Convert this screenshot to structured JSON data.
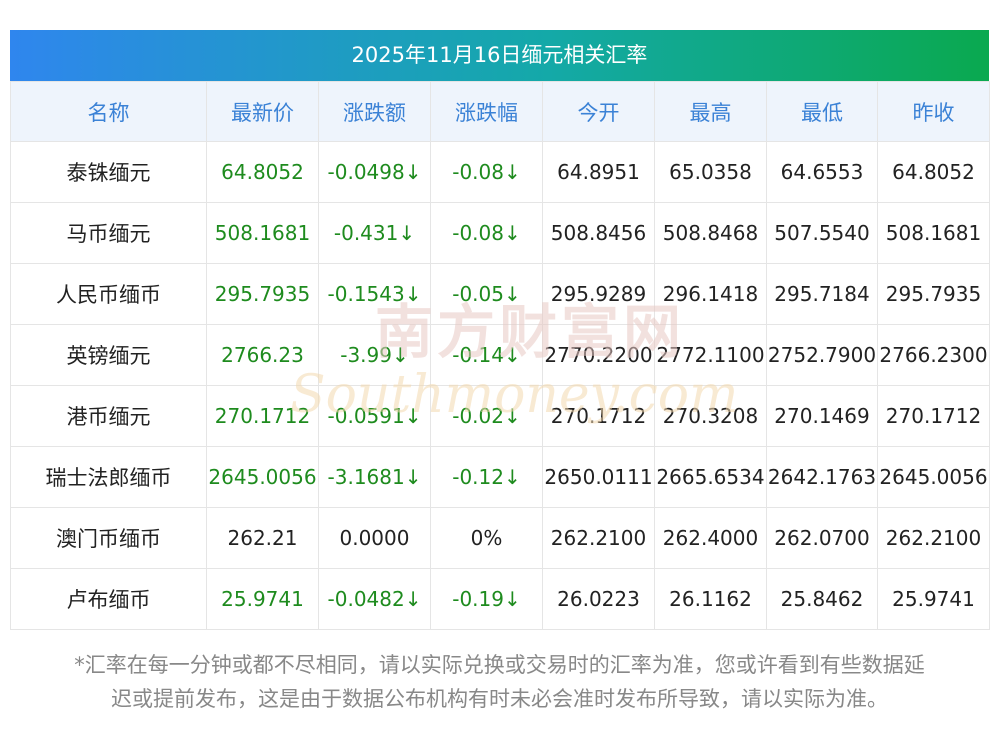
{
  "title": "2025年11月16日缅元相关汇率",
  "headers": [
    "名称",
    "最新价",
    "涨跌额",
    "涨跌幅",
    "今开",
    "最高",
    "最低",
    "昨收"
  ],
  "rows": [
    {
      "name": "泰铢缅元",
      "latest": "64.8052",
      "change": "-0.0498↓",
      "pct": "-0.08↓",
      "open": "64.8951",
      "high": "65.0358",
      "low": "64.6553",
      "prev": "64.8052",
      "color": "green"
    },
    {
      "name": "马币缅元",
      "latest": "508.1681",
      "change": "-0.431↓",
      "pct": "-0.08↓",
      "open": "508.8456",
      "high": "508.8468",
      "low": "507.5540",
      "prev": "508.1681",
      "color": "green"
    },
    {
      "name": "人民币缅币",
      "latest": "295.7935",
      "change": "-0.1543↓",
      "pct": "-0.05↓",
      "open": "295.9289",
      "high": "296.1418",
      "low": "295.7184",
      "prev": "295.7935",
      "color": "green"
    },
    {
      "name": "英镑缅元",
      "latest": "2766.23",
      "change": "-3.99↓",
      "pct": "-0.14↓",
      "open": "2770.2200",
      "high": "2772.1100",
      "low": "2752.7900",
      "prev": "2766.2300",
      "color": "green"
    },
    {
      "name": "港币缅元",
      "latest": "270.1712",
      "change": "-0.0591↓",
      "pct": "-0.02↓",
      "open": "270.1712",
      "high": "270.3208",
      "low": "270.1469",
      "prev": "270.1712",
      "color": "green"
    },
    {
      "name": "瑞士法郎缅币",
      "latest": "2645.0056",
      "change": "-3.1681↓",
      "pct": "-0.12↓",
      "open": "2650.0111",
      "high": "2665.6534",
      "low": "2642.1763",
      "prev": "2645.0056",
      "color": "green"
    },
    {
      "name": "澳门币缅币",
      "latest": "262.21",
      "change": "0.0000",
      "pct": "0%",
      "open": "262.2100",
      "high": "262.4000",
      "low": "262.0700",
      "prev": "262.2100",
      "color": "plain"
    },
    {
      "name": "卢布缅币",
      "latest": "25.9741",
      "change": "-0.0482↓",
      "pct": "-0.19↓",
      "open": "26.0223",
      "high": "26.1162",
      "low": "25.8462",
      "prev": "25.9741",
      "color": "green"
    }
  ],
  "watermark": {
    "cn": "南方财富网",
    "en": "Southmoney.com"
  },
  "footnote": {
    "line1": "*汇率在每一分钟或都不尽相同，请以实际兑换或交易时的汇率为准，您或许看到有些数据延",
    "line2": "迟或提前发布，这是由于数据公布机构有时未必会准时发布所导致，请以实际为准。"
  },
  "colors": {
    "header_text": "#3b82d6",
    "header_bg": "#eef4fc",
    "down": "#1e8b1e",
    "title_gradient_start": "#2f86ee",
    "title_gradient_end": "#0aa94f"
  }
}
